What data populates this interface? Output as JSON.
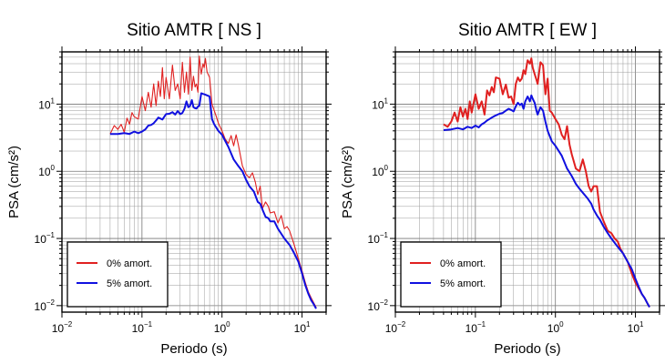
{
  "chart_data": [
    {
      "type": "line",
      "title": "Sitio AMTR [ NS ]",
      "xlabel": "Periodo (s)",
      "ylabel": "PSA (cm/s²)",
      "xscale": "log",
      "yscale": "log",
      "xlim": [
        0.01,
        20
      ],
      "ylim": [
        0.008,
        60
      ],
      "x_ticks": [
        {
          "base": "10",
          "exp": "−2",
          "value": 0.01
        },
        {
          "base": "10",
          "exp": "−1",
          "value": 0.1
        },
        {
          "base": "10",
          "exp": "0",
          "value": 1
        },
        {
          "base": "10",
          "exp": "1",
          "value": 10
        }
      ],
      "y_ticks": [
        {
          "base": "10",
          "exp": "−2",
          "value": 0.01
        },
        {
          "base": "10",
          "exp": "−1",
          "value": 0.1
        },
        {
          "base": "10",
          "exp": "0",
          "value": 1
        },
        {
          "base": "10",
          "exp": "1",
          "value": 10
        }
      ],
      "grid": true,
      "legend": "bottom-left",
      "series": [
        {
          "name": "0% amort.",
          "color": "#e02020",
          "width": 1.1,
          "x": [
            0.04,
            0.045,
            0.05,
            0.055,
            0.06,
            0.065,
            0.07,
            0.075,
            0.08,
            0.09,
            0.1,
            0.11,
            0.12,
            0.13,
            0.14,
            0.15,
            0.16,
            0.17,
            0.18,
            0.19,
            0.2,
            0.22,
            0.24,
            0.26,
            0.28,
            0.3,
            0.32,
            0.34,
            0.36,
            0.38,
            0.4,
            0.42,
            0.44,
            0.46,
            0.48,
            0.5,
            0.52,
            0.55,
            0.58,
            0.6,
            0.62,
            0.65,
            0.7,
            0.75,
            0.8,
            0.85,
            0.9,
            1.0,
            1.1,
            1.2,
            1.3,
            1.4,
            1.5,
            1.6,
            1.8,
            2.0,
            2.2,
            2.4,
            2.6,
            2.8,
            3.0,
            3.2,
            3.5,
            3.8,
            4.0,
            4.5,
            5.0,
            5.5,
            6.0,
            6.5,
            7.0,
            8.0,
            9.0,
            10.0,
            11.0,
            12.0,
            13.0,
            14.0,
            15.0
          ],
          "y": [
            3.6,
            4.8,
            4.2,
            5.0,
            3.8,
            6.2,
            5.0,
            7.5,
            6.5,
            6.0,
            13.0,
            8.0,
            15.0,
            9.0,
            20.0,
            9.5,
            22.0,
            13.0,
            35.0,
            12.0,
            25.0,
            12.0,
            38.0,
            16.0,
            20.0,
            12.0,
            42.0,
            15.0,
            30.0,
            14.0,
            50.0,
            16.0,
            26.0,
            18.0,
            20.0,
            15.0,
            52.0,
            28.0,
            40.0,
            35.0,
            48.0,
            30.0,
            25.0,
            10.0,
            8.0,
            6.5,
            5.2,
            4.0,
            3.0,
            2.6,
            3.4,
            2.4,
            3.5,
            2.5,
            1.2,
            0.9,
            0.8,
            0.95,
            0.7,
            0.45,
            0.6,
            0.28,
            0.35,
            0.3,
            0.24,
            0.25,
            0.17,
            0.22,
            0.14,
            0.15,
            0.13,
            0.08,
            0.05,
            0.033,
            0.022,
            0.016,
            0.013,
            0.011,
            0.0095
          ]
        },
        {
          "name": "5% amort.",
          "color": "#1010e0",
          "width": 2.0,
          "x": [
            0.04,
            0.05,
            0.06,
            0.07,
            0.08,
            0.09,
            0.1,
            0.11,
            0.12,
            0.13,
            0.14,
            0.15,
            0.16,
            0.18,
            0.2,
            0.22,
            0.24,
            0.26,
            0.28,
            0.3,
            0.32,
            0.34,
            0.36,
            0.38,
            0.4,
            0.42,
            0.44,
            0.46,
            0.48,
            0.5,
            0.52,
            0.55,
            0.58,
            0.6,
            0.62,
            0.65,
            0.7,
            0.75,
            0.8,
            0.9,
            1.0,
            1.2,
            1.4,
            1.6,
            1.8,
            2.0,
            2.2,
            2.5,
            2.8,
            3.0,
            3.2,
            3.5,
            3.8,
            4.0,
            4.5,
            5.0,
            6.0,
            7.0,
            8.0,
            9.0,
            10.0,
            11.0,
            12.0,
            13.0,
            14.0,
            15.0
          ],
          "y": [
            3.6,
            3.6,
            3.7,
            3.6,
            3.9,
            3.7,
            3.9,
            4.2,
            4.8,
            4.9,
            5.2,
            5.7,
            6.3,
            5.9,
            7.1,
            7.2,
            7.6,
            7.0,
            7.9,
            7.1,
            7.4,
            8.5,
            11.0,
            9.0,
            9.5,
            11.5,
            9.0,
            8.7,
            8.6,
            9.2,
            9.5,
            14.5,
            14.2,
            14.0,
            13.8,
            13.5,
            13.0,
            6.0,
            5.0,
            4.0,
            3.5,
            2.3,
            1.5,
            1.2,
            1.0,
            0.75,
            0.6,
            0.5,
            0.35,
            0.33,
            0.27,
            0.21,
            0.2,
            0.18,
            0.18,
            0.14,
            0.1,
            0.08,
            0.06,
            0.045,
            0.03,
            0.02,
            0.015,
            0.012,
            0.0105,
            0.009
          ]
        }
      ]
    },
    {
      "type": "line",
      "title": "Sitio AMTR [ EW ]",
      "xlabel": "Periodo (s)",
      "ylabel": "PSA (cm/s²)",
      "xscale": "log",
      "yscale": "log",
      "xlim": [
        0.01,
        20
      ],
      "ylim": [
        0.008,
        60
      ],
      "x_ticks": [
        {
          "base": "10",
          "exp": "−2",
          "value": 0.01
        },
        {
          "base": "10",
          "exp": "−1",
          "value": 0.1
        },
        {
          "base": "10",
          "exp": "0",
          "value": 1
        },
        {
          "base": "10",
          "exp": "1",
          "value": 10
        }
      ],
      "y_ticks": [
        {
          "base": "10",
          "exp": "−2",
          "value": 0.01
        },
        {
          "base": "10",
          "exp": "−1",
          "value": 0.1
        },
        {
          "base": "10",
          "exp": "0",
          "value": 1
        },
        {
          "base": "10",
          "exp": "1",
          "value": 10
        }
      ],
      "grid": true,
      "legend": "bottom-left",
      "series": [
        {
          "name": "0% amort.",
          "color": "#e02020",
          "width": 2.0,
          "x": [
            0.04,
            0.045,
            0.05,
            0.055,
            0.06,
            0.065,
            0.07,
            0.075,
            0.08,
            0.085,
            0.09,
            0.1,
            0.11,
            0.12,
            0.13,
            0.14,
            0.15,
            0.16,
            0.17,
            0.18,
            0.2,
            0.22,
            0.24,
            0.26,
            0.28,
            0.3,
            0.32,
            0.34,
            0.36,
            0.38,
            0.4,
            0.42,
            0.45,
            0.48,
            0.5,
            0.52,
            0.55,
            0.58,
            0.6,
            0.65,
            0.7,
            0.75,
            0.8,
            0.85,
            0.9,
            1.0,
            1.1,
            1.2,
            1.3,
            1.4,
            1.5,
            1.6,
            1.8,
            2.0,
            2.2,
            2.4,
            2.6,
            2.8,
            3.0,
            3.3,
            3.6,
            4.0,
            4.5,
            5.0,
            5.5,
            6.0,
            6.5,
            7.0,
            8.0,
            9.0,
            10.0,
            11.0,
            12.0,
            13.0,
            14.0,
            15.0
          ],
          "y": [
            5.0,
            4.6,
            5.5,
            7.5,
            5.5,
            9.0,
            6.5,
            8.5,
            6.0,
            11.0,
            7.5,
            14.0,
            8.5,
            11.0,
            7.0,
            16.0,
            13.5,
            18.0,
            15.0,
            25.0,
            24.0,
            14.0,
            19.5,
            12.5,
            13.0,
            10.0,
            20.0,
            25.0,
            22.0,
            24.0,
            32.0,
            28.0,
            45.0,
            40.0,
            48.0,
            35.0,
            28.0,
            23.0,
            20.0,
            42.0,
            38.0,
            14.0,
            24.0,
            8.0,
            7.5,
            6.0,
            5.0,
            3.5,
            3.0,
            4.7,
            2.5,
            1.8,
            1.1,
            1.0,
            1.5,
            1.0,
            0.6,
            0.5,
            0.6,
            0.6,
            0.25,
            0.18,
            0.13,
            0.12,
            0.1,
            0.09,
            0.07,
            0.06,
            0.045,
            0.03,
            0.022,
            0.018,
            0.015,
            0.013,
            0.011,
            0.0095
          ]
        },
        {
          "name": "5% amort.",
          "color": "#1010e0",
          "width": 2.0,
          "x": [
            0.04,
            0.05,
            0.06,
            0.07,
            0.08,
            0.09,
            0.1,
            0.11,
            0.12,
            0.13,
            0.14,
            0.15,
            0.16,
            0.18,
            0.2,
            0.22,
            0.24,
            0.26,
            0.28,
            0.3,
            0.32,
            0.34,
            0.36,
            0.38,
            0.4,
            0.42,
            0.45,
            0.48,
            0.5,
            0.52,
            0.55,
            0.58,
            0.6,
            0.65,
            0.7,
            0.75,
            0.8,
            0.9,
            1.0,
            1.2,
            1.4,
            1.6,
            1.8,
            2.0,
            2.2,
            2.5,
            2.8,
            3.0,
            3.3,
            3.6,
            4.0,
            4.5,
            5.0,
            6.0,
            7.0,
            8.0,
            9.0,
            10.0,
            11.0,
            12.0,
            13.0,
            14.0,
            15.0
          ],
          "y": [
            4.1,
            4.2,
            4.4,
            4.2,
            4.6,
            4.4,
            4.8,
            4.5,
            5.0,
            5.3,
            5.7,
            6.0,
            6.3,
            6.8,
            7.2,
            7.4,
            8.0,
            8.5,
            8.2,
            7.8,
            9.3,
            10.5,
            9.7,
            10.2,
            8.5,
            11.0,
            13.0,
            11.0,
            13.5,
            12.0,
            10.5,
            8.0,
            7.0,
            9.0,
            8.0,
            5.5,
            4.0,
            2.8,
            2.4,
            1.7,
            1.1,
            0.85,
            0.65,
            0.55,
            0.48,
            0.4,
            0.33,
            0.27,
            0.22,
            0.19,
            0.15,
            0.12,
            0.1,
            0.075,
            0.06,
            0.045,
            0.035,
            0.025,
            0.019,
            0.015,
            0.013,
            0.011,
            0.0095
          ]
        }
      ]
    }
  ]
}
